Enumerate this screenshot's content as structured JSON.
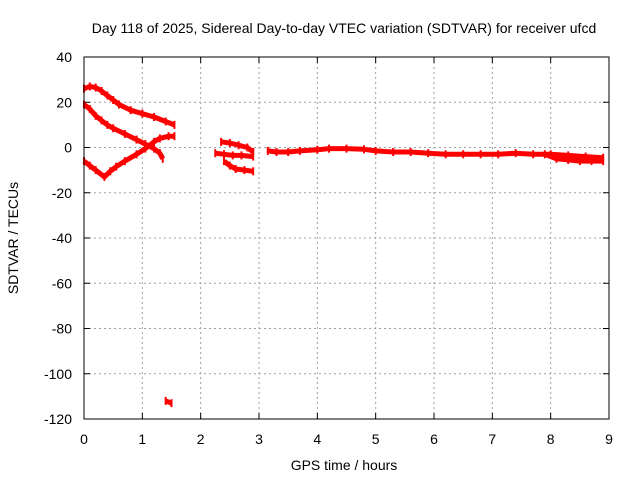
{
  "chart_data": {
    "type": "scatter",
    "title": "Day 118 of 2025, Sidereal Day-to-day VTEC variation (SDTVAR) for receiver ufcd",
    "xlabel": "GPS time / hours",
    "ylabel": "SDTVAR / TECUs",
    "xlim": [
      0,
      9
    ],
    "ylim": [
      -120,
      40
    ],
    "xticks": [
      0,
      1,
      2,
      3,
      4,
      5,
      6,
      7,
      8,
      9
    ],
    "yticks": [
      -120,
      -100,
      -80,
      -60,
      -40,
      -20,
      0,
      20,
      40
    ],
    "grid": true,
    "legend": false,
    "color": "#ff0000",
    "series": [
      {
        "points": [
          [
            0.0,
            26
          ],
          [
            0.1,
            27
          ],
          [
            0.2,
            26.5
          ],
          [
            0.3,
            25
          ],
          [
            0.4,
            23
          ],
          [
            0.5,
            21
          ],
          [
            0.6,
            19
          ],
          [
            0.8,
            16.5
          ],
          [
            1.0,
            15
          ],
          [
            1.2,
            13.5
          ],
          [
            1.4,
            11.5
          ],
          [
            1.55,
            10
          ]
        ]
      },
      {
        "points": [
          [
            0.0,
            19
          ],
          [
            0.1,
            17
          ],
          [
            0.2,
            14
          ],
          [
            0.3,
            12
          ],
          [
            0.4,
            10
          ],
          [
            0.5,
            8.5
          ],
          [
            0.7,
            6
          ],
          [
            0.9,
            3.5
          ],
          [
            1.05,
            1.5
          ],
          [
            1.2,
            -0.5
          ],
          [
            1.3,
            -2.5
          ],
          [
            1.35,
            -5
          ]
        ]
      },
      {
        "points": [
          [
            0.0,
            -6
          ],
          [
            0.1,
            -8
          ],
          [
            0.2,
            -10
          ],
          [
            0.35,
            -13
          ],
          [
            0.45,
            -10.5
          ],
          [
            0.55,
            -8.5
          ],
          [
            0.7,
            -6
          ],
          [
            0.9,
            -3
          ],
          [
            1.05,
            -0.5
          ],
          [
            1.2,
            2.5
          ],
          [
            1.3,
            4
          ],
          [
            1.45,
            5
          ],
          [
            1.55,
            5
          ]
        ]
      },
      {
        "points": [
          [
            1.4,
            -112
          ],
          [
            1.5,
            -113
          ]
        ]
      },
      {
        "points": [
          [
            2.35,
            2.5
          ],
          [
            2.5,
            2
          ],
          [
            2.65,
            1
          ],
          [
            2.8,
            0
          ],
          [
            2.9,
            -2
          ]
        ]
      },
      {
        "points": [
          [
            2.25,
            -2.5
          ],
          [
            2.4,
            -3
          ],
          [
            2.55,
            -3.5
          ],
          [
            2.7,
            -3.5
          ],
          [
            2.9,
            -4
          ]
        ]
      },
      {
        "points": [
          [
            2.4,
            -6
          ],
          [
            2.5,
            -8
          ],
          [
            2.6,
            -9.5
          ],
          [
            2.75,
            -10
          ],
          [
            2.9,
            -10.5
          ]
        ]
      },
      {
        "points": [
          [
            3.15,
            -1.5
          ],
          [
            3.3,
            -2
          ],
          [
            3.5,
            -2
          ],
          [
            3.7,
            -1.5
          ],
          [
            4.0,
            -1
          ],
          [
            4.2,
            -0.5
          ],
          [
            4.5,
            -0.5
          ],
          [
            4.8,
            -0.8
          ],
          [
            5.0,
            -1.5
          ],
          [
            5.3,
            -2
          ],
          [
            5.6,
            -2
          ],
          [
            5.9,
            -2.5
          ],
          [
            6.2,
            -3
          ],
          [
            6.5,
            -3
          ],
          [
            6.8,
            -3
          ],
          [
            7.1,
            -3
          ],
          [
            7.4,
            -2.5
          ],
          [
            7.7,
            -3
          ],
          [
            8.0,
            -3
          ],
          [
            8.3,
            -3.5
          ],
          [
            8.6,
            -4
          ],
          [
            8.9,
            -4.5
          ]
        ]
      },
      {
        "points": [
          [
            7.9,
            -3
          ],
          [
            8.1,
            -5
          ],
          [
            8.3,
            -5.5
          ],
          [
            8.5,
            -6
          ],
          [
            8.7,
            -6
          ],
          [
            8.9,
            -6
          ]
        ]
      }
    ]
  }
}
